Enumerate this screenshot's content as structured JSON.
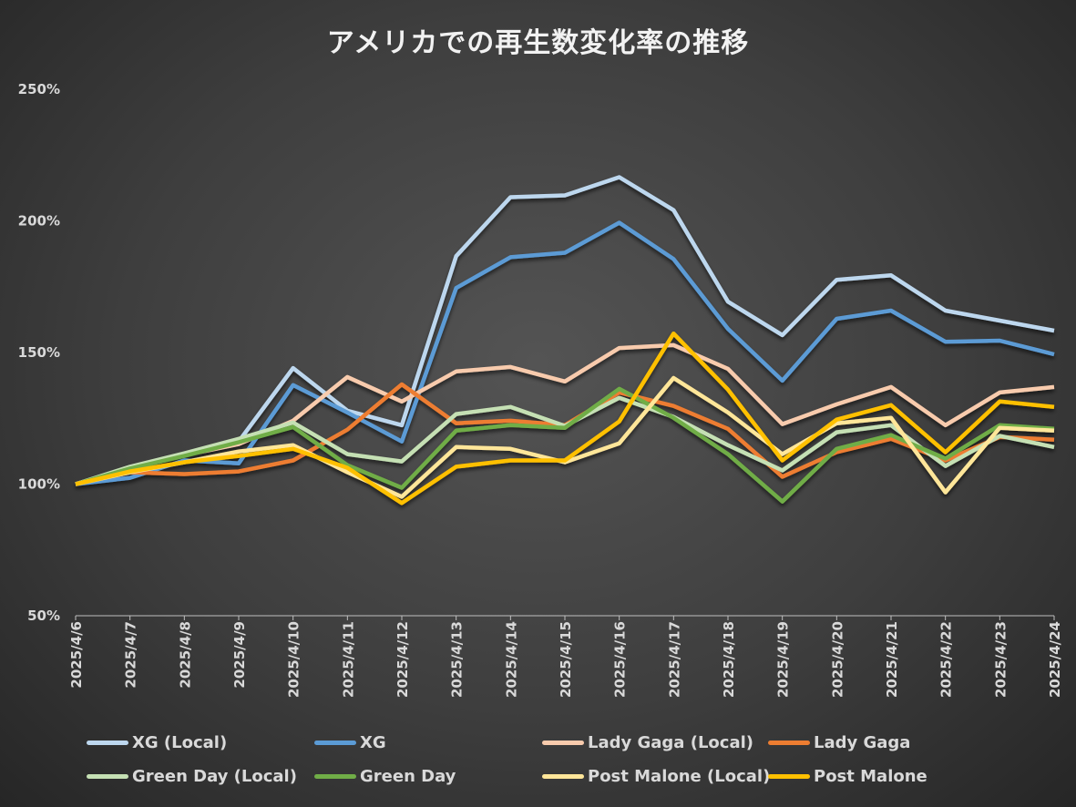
{
  "chart_data": {
    "type": "line",
    "title": "アメリカでの再生数変化率の推移",
    "xlabel": "",
    "ylabel": "",
    "ylim": [
      50,
      250
    ],
    "yticks": [
      "50%",
      "100%",
      "150%",
      "200%",
      "250%"
    ],
    "ytick_values": [
      50,
      100,
      150,
      200,
      250
    ],
    "legend_position": "bottom",
    "grid": false,
    "x": [
      "2025/4/6",
      "2025/4/7",
      "2025/4/8",
      "2025/4/9",
      "2025/4/10",
      "2025/4/11",
      "2025/4/12",
      "2025/4/13",
      "2025/4/14",
      "2025/4/15",
      "2025/4/16",
      "2025/4/17",
      "2025/4/18",
      "2025/4/19",
      "2025/4/20",
      "2025/4/21",
      "2025/4/22",
      "2025/4/23",
      "2025/4/24"
    ],
    "series": [
      {
        "name": "XG (Local)",
        "color": "#bdd7ee",
        "values": [
          100,
          105.9,
          111,
          116.2,
          144.1,
          127.9,
          122.4,
          186.6,
          209,
          209.7,
          216.6,
          204.1,
          169.3,
          156.6,
          177.6,
          179.3,
          165.9,
          162.1,
          158.3
        ]
      },
      {
        "name": "XG",
        "color": "#5b9bd5",
        "values": [
          100,
          102.4,
          109,
          107.9,
          137.6,
          127.2,
          116.2,
          174.5,
          186.2,
          187.9,
          199.3,
          185.5,
          159,
          139.3,
          162.8,
          165.9,
          154.1,
          154.5,
          149.3
        ]
      },
      {
        "name": "Lady Gaga (Local)",
        "color": "#f8cbad",
        "values": [
          100,
          106.2,
          111,
          115.2,
          124.1,
          140.7,
          131.4,
          142.8,
          144.5,
          139,
          151.7,
          152.8,
          143.8,
          122.8,
          130.3,
          136.9,
          122.4,
          134.8,
          136.9
        ]
      },
      {
        "name": "Lady Gaga",
        "color": "#ed7d31",
        "values": [
          100,
          104.5,
          103.8,
          104.8,
          109,
          120.7,
          137.9,
          123.1,
          124.1,
          122.4,
          134.8,
          129.7,
          121,
          102.8,
          112.1,
          117.2,
          109,
          117.9,
          116.9
        ]
      },
      {
        "name": "Green Day (Local)",
        "color": "#c5e0b4",
        "values": [
          100,
          106.6,
          111.7,
          117.2,
          123.4,
          111.4,
          108.6,
          126.6,
          129.3,
          122.1,
          132.8,
          125.5,
          114.8,
          105.2,
          119.7,
          122.4,
          106.9,
          118.3,
          114.1
        ]
      },
      {
        "name": "Green Day",
        "color": "#70ad47",
        "values": [
          100,
          105.9,
          110.7,
          115.9,
          121.7,
          107.2,
          98.6,
          120.3,
          122.4,
          121.4,
          136.2,
          125.2,
          111.4,
          93.4,
          113.4,
          118.6,
          109.7,
          122.4,
          121
        ]
      },
      {
        "name": "Post Malone (Local)",
        "color": "#ffe699",
        "values": [
          100,
          104.5,
          108.3,
          112.4,
          114.8,
          104.5,
          95.2,
          114.1,
          113.4,
          108.3,
          115.5,
          140.3,
          127.2,
          111.4,
          123.1,
          125.2,
          96.9,
          121.4,
          120.3
        ]
      },
      {
        "name": "Post Malone",
        "color": "#ffc000",
        "values": [
          100,
          104.8,
          108.3,
          110.7,
          113.4,
          106.2,
          92.8,
          106.6,
          109,
          109,
          123.8,
          157.2,
          135.9,
          109,
          124.5,
          130,
          112.1,
          131.4,
          129.3
        ]
      }
    ]
  }
}
